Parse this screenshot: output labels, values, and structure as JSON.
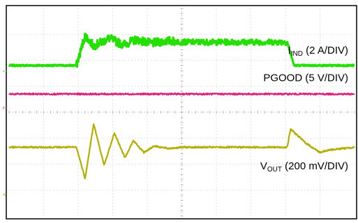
{
  "chart_data": {
    "type": "line",
    "title": "",
    "xlabel": "",
    "ylabel": "",
    "grid": true,
    "grid_divisions": {
      "x": 10,
      "y": 8
    },
    "x_range_div": [
      0,
      10
    ],
    "y_range_div": [
      -4,
      4
    ],
    "channel_markers": [
      "1",
      "2",
      "4"
    ],
    "series": [
      {
        "key": "iind",
        "label_main": "I",
        "label_sub": "IND",
        "label_rest": " (2 A/DIV)",
        "color": "#22e000",
        "baseline_div": 1.8,
        "x": [
          0.0,
          1.95,
          2.2,
          2.45,
          2.9,
          3.3,
          3.7,
          4.1,
          4.6,
          5.0,
          6.0,
          7.0,
          8.05,
          8.25,
          10.0
        ],
        "y": [
          1.8,
          1.8,
          2.95,
          2.55,
          2.85,
          2.6,
          2.8,
          2.65,
          2.75,
          2.7,
          2.7,
          2.7,
          2.7,
          1.8,
          1.8
        ]
      },
      {
        "key": "pgood",
        "label_main": "PGOOD (5 V/DIV)",
        "label_sub": "",
        "label_rest": "",
        "color": "#e0207a",
        "baseline_div": 0.7,
        "x": [
          0,
          10
        ],
        "y": [
          0.7,
          0.7
        ]
      },
      {
        "key": "vout",
        "label_main": "V",
        "label_sub": "OUT",
        "label_rest": " (200 mV/DIV)",
        "color": "#b5ae00",
        "baseline_div": -1.35,
        "x": [
          0.0,
          1.95,
          2.2,
          2.45,
          2.75,
          3.05,
          3.35,
          3.6,
          3.9,
          4.2,
          4.6,
          5.0,
          6.0,
          7.0,
          8.05,
          8.15,
          8.6,
          9.0,
          9.3,
          10.0
        ],
        "y": [
          -1.35,
          -1.35,
          -2.55,
          -0.45,
          -2.05,
          -0.8,
          -1.75,
          -1.1,
          -1.55,
          -1.3,
          -1.4,
          -1.35,
          -1.35,
          -1.35,
          -1.35,
          -0.65,
          -1.2,
          -1.55,
          -1.45,
          -1.35
        ]
      }
    ]
  }
}
